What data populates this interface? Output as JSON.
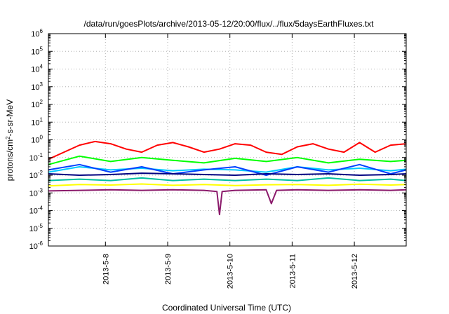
{
  "chart_data": {
    "type": "line",
    "title": "/data/run/goesPlots/archive/2013-05-12/20:00/flux/../flux/5daysEarthFluxes.txt",
    "xlabel": "Coordinated Universal Time (UTC)",
    "ylabel": {
      "prefix": "protons/cm",
      "sup": "2",
      "suffix": "-s-sr-MeV"
    },
    "yscale": "log",
    "ylim": [
      1e-06,
      1000000.0
    ],
    "xlim": [
      "2013-05-07 02:00",
      "2013-05-12 20:00"
    ],
    "grid": true,
    "y_ticks": [
      {
        "value": 1e-06,
        "base": "10",
        "exp": "-6"
      },
      {
        "value": 1e-05,
        "base": "10",
        "exp": "-5"
      },
      {
        "value": 0.0001,
        "base": "10",
        "exp": "-4"
      },
      {
        "value": 0.001,
        "base": "10",
        "exp": "-3"
      },
      {
        "value": 0.01,
        "base": "10",
        "exp": "-2"
      },
      {
        "value": 0.1,
        "base": "10",
        "exp": "-1"
      },
      {
        "value": 1,
        "base": "10",
        "exp": "0"
      },
      {
        "value": 10.0,
        "base": "10",
        "exp": "1"
      },
      {
        "value": 100.0,
        "base": "10",
        "exp": "2"
      },
      {
        "value": 1000.0,
        "base": "10",
        "exp": "3"
      },
      {
        "value": 10000.0,
        "base": "10",
        "exp": "4"
      },
      {
        "value": 100000.0,
        "base": "10",
        "exp": "5"
      },
      {
        "value": 1000000.0,
        "base": "10",
        "exp": "6"
      }
    ],
    "x_ticks": [
      "2013-5-8",
      "2013-5-9",
      "2013-5-10",
      "2013-5-11",
      "2013-5-12"
    ],
    "series": [
      {
        "color": "#ff0000",
        "x": [
          "2013-05-07 02:00",
          "2013-05-07 08:00",
          "2013-05-07 14:00",
          "2013-05-07 20:00",
          "2013-05-08 02:00",
          "2013-05-08 08:00",
          "2013-05-08 14:00",
          "2013-05-08 20:00",
          "2013-05-09 02:00",
          "2013-05-09 08:00",
          "2013-05-09 14:00",
          "2013-05-09 20:00",
          "2013-05-10 02:00",
          "2013-05-10 08:00",
          "2013-05-10 14:00",
          "2013-05-10 20:00",
          "2013-05-11 02:00",
          "2013-05-11 08:00",
          "2013-05-11 14:00",
          "2013-05-11 20:00",
          "2013-05-12 02:00",
          "2013-05-12 08:00",
          "2013-05-12 14:00",
          "2013-05-12 20:00"
        ],
        "y": [
          0.08,
          0.2,
          0.5,
          0.8,
          0.6,
          0.3,
          0.2,
          0.5,
          0.7,
          0.4,
          0.2,
          0.3,
          0.6,
          0.5,
          0.2,
          0.15,
          0.4,
          0.6,
          0.3,
          0.2,
          0.7,
          0.2,
          0.5,
          0.6
        ]
      },
      {
        "color": "#00ff00",
        "x": [
          "2013-05-07 02:00",
          "2013-05-07 14:00",
          "2013-05-08 02:00",
          "2013-05-08 14:00",
          "2013-05-09 02:00",
          "2013-05-09 14:00",
          "2013-05-10 02:00",
          "2013-05-10 14:00",
          "2013-05-11 02:00",
          "2013-05-11 14:00",
          "2013-05-12 02:00",
          "2013-05-12 14:00",
          "2013-05-12 20:00"
        ],
        "y": [
          0.04,
          0.12,
          0.06,
          0.1,
          0.07,
          0.05,
          0.09,
          0.06,
          0.1,
          0.05,
          0.08,
          0.06,
          0.07
        ]
      },
      {
        "color": "#00c8ff",
        "x": [
          "2013-05-07 02:00",
          "2013-05-07 14:00",
          "2013-05-08 02:00",
          "2013-05-08 14:00",
          "2013-05-09 02:00",
          "2013-05-09 14:00",
          "2013-05-10 02:00",
          "2013-05-10 14:00",
          "2013-05-11 02:00",
          "2013-05-11 14:00",
          "2013-05-12 02:00",
          "2013-05-12 14:00",
          "2013-05-12 20:00"
        ],
        "y": [
          0.015,
          0.03,
          0.02,
          0.025,
          0.018,
          0.022,
          0.02,
          0.015,
          0.03,
          0.02,
          0.025,
          0.018,
          0.022
        ]
      },
      {
        "color": "#0040ff",
        "x": [
          "2013-05-07 02:00",
          "2013-05-07 14:00",
          "2013-05-08 02:00",
          "2013-05-08 14:00",
          "2013-05-09 02:00",
          "2013-05-09 14:00",
          "2013-05-10 02:00",
          "2013-05-10 14:00",
          "2013-05-11 02:00",
          "2013-05-11 14:00",
          "2013-05-12 02:00",
          "2013-05-12 14:00",
          "2013-05-12 20:00"
        ],
        "y": [
          0.02,
          0.04,
          0.015,
          0.03,
          0.012,
          0.02,
          0.03,
          0.01,
          0.03,
          0.015,
          0.04,
          0.012,
          0.02
        ]
      },
      {
        "color": "#000080",
        "x": [
          "2013-05-07 02:00",
          "2013-05-07 14:00",
          "2013-05-08 02:00",
          "2013-05-08 14:00",
          "2013-05-09 02:00",
          "2013-05-09 14:00",
          "2013-05-10 02:00",
          "2013-05-10 14:00",
          "2013-05-11 02:00",
          "2013-05-11 14:00",
          "2013-05-12 02:00",
          "2013-05-12 14:00",
          "2013-05-12 20:00"
        ],
        "y": [
          0.012,
          0.01,
          0.011,
          0.013,
          0.012,
          0.011,
          0.01,
          0.012,
          0.011,
          0.012,
          0.01,
          0.011,
          0.012
        ]
      },
      {
        "color": "#00bfa0",
        "x": [
          "2013-05-07 02:00",
          "2013-05-07 14:00",
          "2013-05-08 02:00",
          "2013-05-08 14:00",
          "2013-05-09 02:00",
          "2013-05-09 14:00",
          "2013-05-10 02:00",
          "2013-05-10 14:00",
          "2013-05-11 02:00",
          "2013-05-11 14:00",
          "2013-05-12 02:00",
          "2013-05-12 14:00",
          "2013-05-12 20:00"
        ],
        "y": [
          0.005,
          0.006,
          0.005,
          0.007,
          0.005,
          0.006,
          0.005,
          0.006,
          0.005,
          0.007,
          0.005,
          0.006,
          0.005
        ]
      },
      {
        "color": "#ffff00",
        "x": [
          "2013-05-07 02:00",
          "2013-05-07 14:00",
          "2013-05-08 02:00",
          "2013-05-08 14:00",
          "2013-05-09 02:00",
          "2013-05-09 14:00",
          "2013-05-10 02:00",
          "2013-05-10 14:00",
          "2013-05-11 02:00",
          "2013-05-11 14:00",
          "2013-05-12 02:00",
          "2013-05-12 14:00",
          "2013-05-12 20:00"
        ],
        "y": [
          0.0025,
          0.003,
          0.0028,
          0.0032,
          0.0027,
          0.003,
          0.0026,
          0.0029,
          0.003,
          0.0027,
          0.0031,
          0.0028,
          0.003
        ]
      },
      {
        "color": "#8b1a6b",
        "x": [
          "2013-05-07 02:00",
          "2013-05-07 14:00",
          "2013-05-08 02:00",
          "2013-05-08 14:00",
          "2013-05-09 02:00",
          "2013-05-09 14:00",
          "2013-05-09 19:00",
          "2013-05-09 20:00",
          "2013-05-09 21:00",
          "2013-05-10 02:00",
          "2013-05-10 14:00",
          "2013-05-10 16:00",
          "2013-05-10 18:00",
          "2013-05-11 02:00",
          "2013-05-11 14:00",
          "2013-05-12 02:00",
          "2013-05-12 14:00",
          "2013-05-12 20:00"
        ],
        "y": [
          0.0013,
          0.0014,
          0.0015,
          0.0014,
          0.0015,
          0.0014,
          0.0012,
          6e-05,
          0.0012,
          0.0014,
          0.0015,
          0.00025,
          0.0014,
          0.0015,
          0.0014,
          0.0015,
          0.0014,
          0.0015
        ]
      }
    ]
  }
}
